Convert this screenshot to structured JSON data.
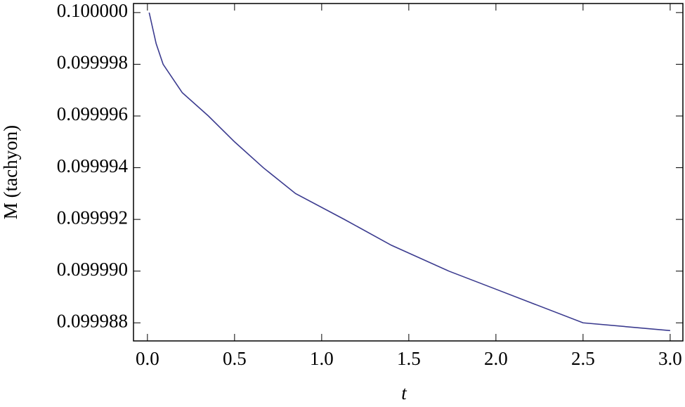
{
  "chart_data": {
    "type": "line",
    "x_label": "t",
    "y_label": "M (tachyon)",
    "x": [
      0.01,
      0.05,
      0.09,
      0.2,
      0.35,
      0.5,
      0.665,
      0.85,
      1.13,
      1.4,
      1.73,
      2.0,
      2.5,
      3.0
    ],
    "series": [
      {
        "color": "#3b3b8f",
        "values": [
          0.1,
          0.0999988,
          0.099998,
          0.0999969,
          0.099996,
          0.099995,
          0.099994,
          0.099993,
          0.099992,
          0.099991,
          0.09999,
          0.0999893,
          0.099988,
          0.0999877
        ]
      }
    ],
    "xlim": [
      -0.08,
      3.073
    ],
    "ylim": [
      0.0999873,
      0.10000035
    ],
    "xticks": [
      {
        "value": 0,
        "label": "0.0"
      },
      0.5,
      {
        "value": 1,
        "label": "1.0"
      },
      1.5,
      {
        "value": 2,
        "label": "2.0"
      },
      2.5,
      {
        "value": 3,
        "label": "3.0"
      }
    ],
    "yticks": [
      {
        "value": 0.1,
        "label": "0.100000"
      },
      0.099998,
      0.099996,
      0.099994,
      0.099992,
      {
        "value": 0.09999,
        "label": "0.099990"
      },
      {
        "value": 0.099988,
        "label": "0.099988"
      }
    ]
  }
}
